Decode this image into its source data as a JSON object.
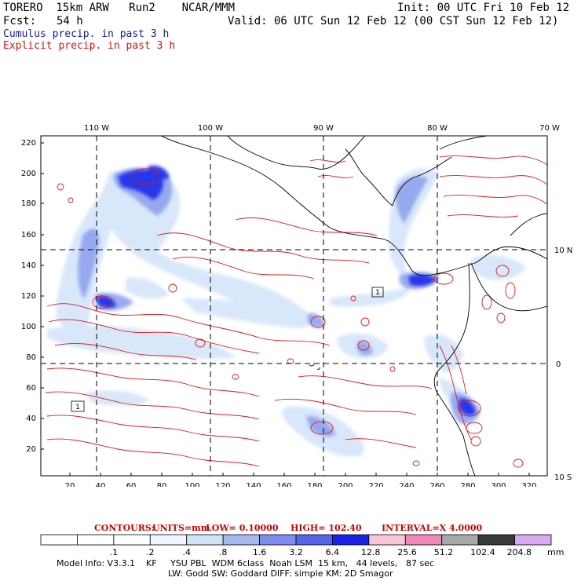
{
  "header": {
    "model": "TORERO  15km ARW   Run2    NCAR/MMM",
    "init": "Init: 00 UTC Fri 10 Feb 12",
    "fcst_label": "Fcst:",
    "fcst_value": "54 h",
    "valid": "Valid: 06 UTC Sun 12 Feb 12 (00 CST Sun 12 Feb 12)",
    "legend_cumulus": "Cumulus precip. in past 3 h",
    "legend_explicit": "Explicit precip. in past 3 h"
  },
  "map": {
    "lon_labels": [
      "110 W",
      "100 W",
      "90 W",
      "80 W",
      "70 W"
    ],
    "lat_labels": [
      "10 N",
      "0",
      "10 S"
    ],
    "y_ticks": [
      "220",
      "200",
      "180",
      "160",
      "140",
      "120",
      "100",
      "80",
      "60",
      "40",
      "20"
    ],
    "x_ticks": [
      "20",
      "40",
      "60",
      "80",
      "100",
      "120",
      "140",
      "160",
      "180",
      "200",
      "220",
      "240",
      "260",
      "280",
      "300",
      "320"
    ],
    "box_labels": [
      "1",
      "1"
    ]
  },
  "contours": {
    "label": "CONTOURS:",
    "units": "UNITS=mm",
    "low": "LOW= 0.10000",
    "high": "HIGH= 102.40",
    "interval": "INTERVAL=X 4.0000"
  },
  "colorbar": {
    "labels": [
      ".1",
      ".2",
      ".4",
      ".8",
      "1.6",
      "3.2",
      "6.4",
      "12.8",
      "25.6",
      "51.2",
      "102.4",
      "204.8"
    ],
    "unit": "mm",
    "colors": [
      "#ffffff",
      "#ffffff",
      "#ffffff",
      "#eef6ff",
      "#d0e4f8",
      "#a7b8ee",
      "#7d8ef0",
      "#5664ec",
      "#1a22e8",
      "#f9c8d6",
      "#ef88b8",
      "#a8a8a8",
      "#3a3a3a",
      "#d8a8f0"
    ]
  },
  "footer": {
    "line1": "Model Info: V3.3.1    KF     YSU PBL  WDM 6class  Noah LSM  15 km,   44 levels,   87 sec",
    "line2": "LW: Godd SW: Goddard DIFF: simple KM: 2D Smagor"
  }
}
